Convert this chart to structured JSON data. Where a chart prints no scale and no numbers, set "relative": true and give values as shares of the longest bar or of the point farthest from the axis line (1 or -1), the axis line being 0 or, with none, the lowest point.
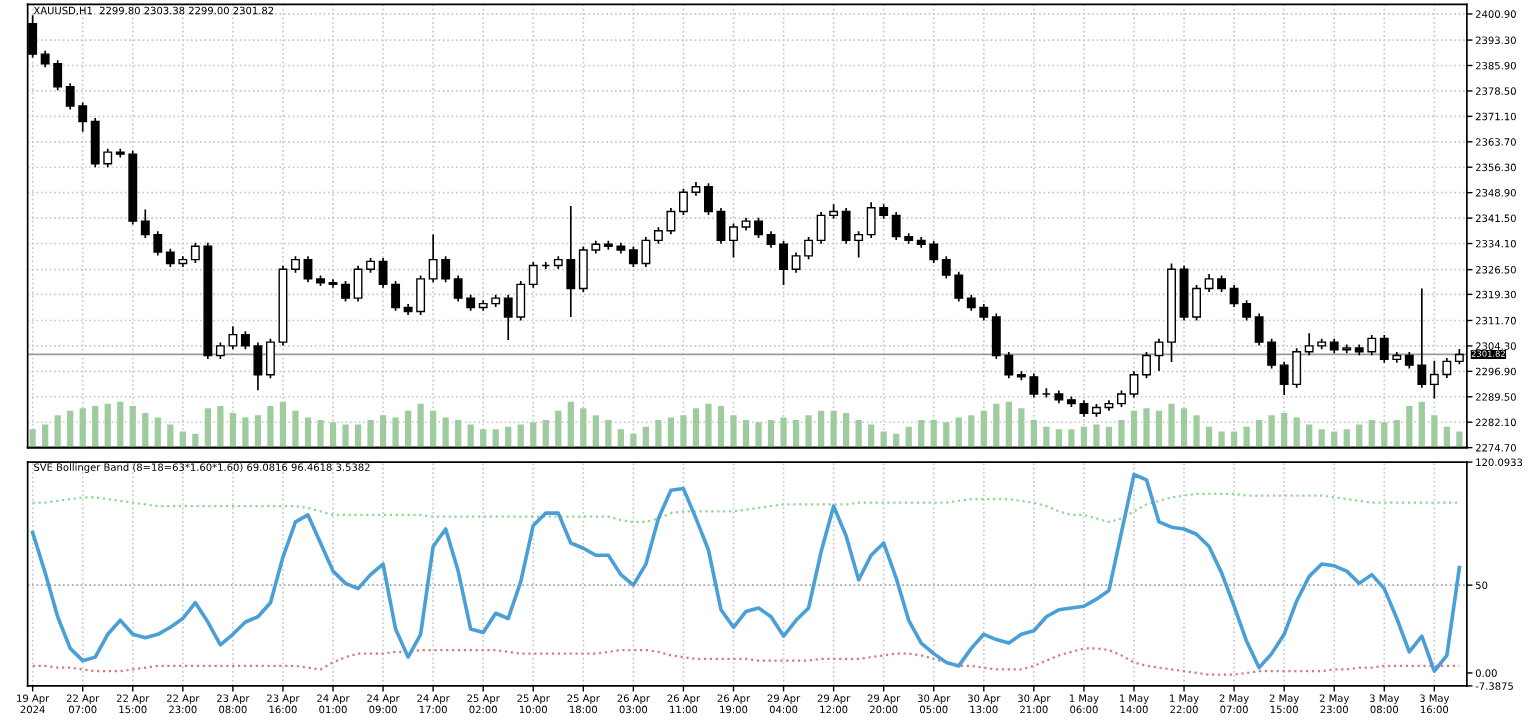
{
  "chart_data": [
    {
      "type": "candlestick",
      "title": "XAUUSD,H1  2299.80 2303.38 2299.00 2301.82",
      "ohlc": [
        [
          2398.1,
          2400.5,
          2388.2,
          2389.2
        ],
        [
          2389.2,
          2390.2,
          2385.4,
          2386.4
        ],
        [
          2386.4,
          2387.4,
          2378.7,
          2379.7
        ],
        [
          2379.7,
          2380.7,
          2373.1,
          2374.1
        ],
        [
          2374.1,
          2375.1,
          2366.6,
          2369.6
        ],
        [
          2369.6,
          2370.6,
          2356.3,
          2357.3
        ],
        [
          2357.3,
          2361.7,
          2356.3,
          2360.7
        ],
        [
          2360.7,
          2361.7,
          2359.1,
          2360.1
        ],
        [
          2360.1,
          2361.1,
          2339.6,
          2340.6
        ],
        [
          2340.6,
          2344.0,
          2335.7,
          2336.7
        ],
        [
          2336.7,
          2337.7,
          2330.6,
          2331.6
        ],
        [
          2331.6,
          2332.6,
          2327.3,
          2328.3
        ],
        [
          2328.3,
          2330.4,
          2327.3,
          2329.4
        ],
        [
          2329.4,
          2334.3,
          2328.4,
          2333.3
        ],
        [
          2333.3,
          2334.3,
          2300.5,
          2301.5
        ],
        [
          2301.5,
          2305.3,
          2300.5,
          2304.3
        ],
        [
          2304.3,
          2310.0,
          2303.3,
          2307.6
        ],
        [
          2307.6,
          2308.6,
          2303.3,
          2304.3
        ],
        [
          2304.3,
          2305.3,
          2291.4,
          2295.9
        ],
        [
          2295.9,
          2306.4,
          2294.9,
          2305.4
        ],
        [
          2305.4,
          2327.6,
          2304.4,
          2326.6
        ],
        [
          2326.6,
          2330.4,
          2325.6,
          2329.4
        ],
        [
          2329.4,
          2330.4,
          2322.8,
          2323.8
        ],
        [
          2323.8,
          2324.8,
          2321.7,
          2322.7
        ],
        [
          2322.7,
          2323.7,
          2321.2,
          2322.2
        ],
        [
          2322.2,
          2323.2,
          2317.2,
          2318.2
        ],
        [
          2318.2,
          2327.6,
          2317.2,
          2326.6
        ],
        [
          2326.6,
          2329.9,
          2325.6,
          2328.9
        ],
        [
          2328.9,
          2329.9,
          2321.2,
          2322.2
        ],
        [
          2322.2,
          2323.2,
          2314.5,
          2315.5
        ],
        [
          2315.5,
          2316.5,
          2313.3,
          2314.3
        ],
        [
          2314.3,
          2324.8,
          2313.3,
          2323.8
        ],
        [
          2323.8,
          2336.7,
          2322.8,
          2329.4
        ],
        [
          2329.4,
          2330.4,
          2322.8,
          2323.8
        ],
        [
          2323.8,
          2324.8,
          2317.2,
          2318.2
        ],
        [
          2318.2,
          2319.2,
          2314.5,
          2315.5
        ],
        [
          2315.5,
          2317.6,
          2314.5,
          2316.6
        ],
        [
          2316.6,
          2319.2,
          2315.6,
          2318.2
        ],
        [
          2318.2,
          2319.2,
          2306.0,
          2312.7
        ],
        [
          2312.7,
          2323.2,
          2311.7,
          2322.2
        ],
        [
          2322.2,
          2328.7,
          2321.2,
          2327.7
        ],
        [
          2327.7,
          2328.7,
          2326.7,
          2327.7
        ],
        [
          2327.7,
          2330.4,
          2326.7,
          2329.4
        ],
        [
          2329.4,
          2345.0,
          2312.7,
          2321.0
        ],
        [
          2321.0,
          2333.2,
          2320.0,
          2332.2
        ],
        [
          2332.2,
          2334.9,
          2331.2,
          2333.9
        ],
        [
          2333.9,
          2334.9,
          2332.3,
          2333.3
        ],
        [
          2333.3,
          2334.3,
          2331.2,
          2332.2
        ],
        [
          2332.2,
          2333.2,
          2327.3,
          2328.3
        ],
        [
          2328.3,
          2336.0,
          2327.3,
          2335.0
        ],
        [
          2335.0,
          2338.8,
          2334.0,
          2337.8
        ],
        [
          2337.8,
          2344.4,
          2336.8,
          2343.4
        ],
        [
          2343.4,
          2350.0,
          2342.4,
          2349.0
        ],
        [
          2349.0,
          2352.0,
          2348.0,
          2350.6
        ],
        [
          2350.6,
          2351.6,
          2342.4,
          2343.4
        ],
        [
          2343.4,
          2344.4,
          2334.0,
          2335.0
        ],
        [
          2335.0,
          2339.9,
          2330.0,
          2338.9
        ],
        [
          2338.9,
          2341.6,
          2337.9,
          2340.6
        ],
        [
          2340.6,
          2341.6,
          2335.7,
          2336.7
        ],
        [
          2336.7,
          2337.7,
          2332.9,
          2333.9
        ],
        [
          2333.9,
          2334.9,
          2322.0,
          2326.6
        ],
        [
          2326.6,
          2331.5,
          2325.6,
          2330.5
        ],
        [
          2330.5,
          2336.0,
          2329.5,
          2335.0
        ],
        [
          2335.0,
          2343.3,
          2334.0,
          2342.3
        ],
        [
          2342.3,
          2345.5,
          2341.3,
          2343.4
        ],
        [
          2343.4,
          2344.4,
          2334.0,
          2335.0
        ],
        [
          2335.0,
          2337.7,
          2330.0,
          2336.7
        ],
        [
          2336.7,
          2346.1,
          2335.7,
          2344.5
        ],
        [
          2344.5,
          2345.5,
          2341.3,
          2342.3
        ],
        [
          2342.3,
          2343.3,
          2335.1,
          2336.1
        ],
        [
          2336.1,
          2337.1,
          2334.0,
          2335.0
        ],
        [
          2335.0,
          2336.0,
          2332.9,
          2333.9
        ],
        [
          2333.9,
          2334.9,
          2328.4,
          2329.4
        ],
        [
          2329.4,
          2330.4,
          2323.9,
          2324.9
        ],
        [
          2324.9,
          2325.9,
          2317.2,
          2318.2
        ],
        [
          2318.2,
          2319.2,
          2314.5,
          2315.5
        ],
        [
          2315.5,
          2316.5,
          2311.7,
          2312.7
        ],
        [
          2312.7,
          2313.7,
          2300.5,
          2301.5
        ],
        [
          2301.5,
          2302.5,
          2294.9,
          2295.9
        ],
        [
          2295.9,
          2296.9,
          2294.3,
          2295.3
        ],
        [
          2295.3,
          2296.3,
          2289.3,
          2290.3
        ],
        [
          2290.3,
          2292.0,
          2289.3,
          2290.3
        ],
        [
          2290.3,
          2291.3,
          2287.6,
          2288.6
        ],
        [
          2288.6,
          2289.6,
          2286.5,
          2287.5
        ],
        [
          2287.5,
          2288.5,
          2283.7,
          2284.7
        ],
        [
          2284.7,
          2287.4,
          2283.7,
          2286.4
        ],
        [
          2286.4,
          2288.5,
          2285.4,
          2287.5
        ],
        [
          2287.5,
          2291.3,
          2286.5,
          2290.3
        ],
        [
          2290.3,
          2296.9,
          2289.3,
          2295.9
        ],
        [
          2295.9,
          2302.5,
          2294.9,
          2301.5
        ],
        [
          2301.5,
          2306.4,
          2297.0,
          2305.4
        ],
        [
          2305.4,
          2328.3,
          2299.6,
          2326.6
        ],
        [
          2326.6,
          2327.6,
          2311.7,
          2312.7
        ],
        [
          2312.7,
          2322.0,
          2311.7,
          2321.0
        ],
        [
          2321.0,
          2325.2,
          2320.0,
          2323.8
        ],
        [
          2323.8,
          2324.8,
          2320.0,
          2321.0
        ],
        [
          2321.0,
          2322.0,
          2315.6,
          2316.6
        ],
        [
          2316.6,
          2317.6,
          2311.7,
          2312.7
        ],
        [
          2312.7,
          2313.7,
          2304.4,
          2305.4
        ],
        [
          2305.4,
          2306.4,
          2297.7,
          2298.7
        ],
        [
          2298.7,
          2299.7,
          2290.0,
          2293.1
        ],
        [
          2293.1,
          2303.6,
          2292.1,
          2302.6
        ],
        [
          2302.6,
          2308.0,
          2301.6,
          2304.3
        ],
        [
          2304.3,
          2306.4,
          2303.3,
          2305.4
        ],
        [
          2305.4,
          2306.4,
          2302.2,
          2303.2
        ],
        [
          2303.2,
          2304.7,
          2302.2,
          2303.7
        ],
        [
          2303.7,
          2304.7,
          2301.6,
          2302.6
        ],
        [
          2302.6,
          2307.5,
          2301.6,
          2306.5
        ],
        [
          2306.5,
          2307.5,
          2299.4,
          2300.4
        ],
        [
          2300.4,
          2302.5,
          2299.4,
          2301.5
        ],
        [
          2301.5,
          2302.5,
          2297.7,
          2298.7
        ],
        [
          2298.7,
          2321.0,
          2292.1,
          2293.1
        ],
        [
          2293.1,
          2300.0,
          2289.0,
          2296.0
        ],
        [
          2296.0,
          2300.8,
          2295.0,
          2299.8
        ],
        [
          2299.8,
          2303.38,
          2299.0,
          2301.82
        ]
      ],
      "ylim": [
        2274.7,
        2403.7
      ],
      "yticks": [
        {
          "value": 2400.9,
          "label": "2400.90"
        },
        {
          "value": 2393.3,
          "label": "2393.30"
        },
        {
          "value": 2385.9,
          "label": "2385.90"
        },
        {
          "value": 2378.5,
          "label": "2378.50"
        },
        {
          "value": 2371.1,
          "label": "2371.10"
        },
        {
          "value": 2363.7,
          "label": "2363.70"
        },
        {
          "value": 2356.3,
          "label": "2356.30"
        },
        {
          "value": 2348.9,
          "label": "2348.90"
        },
        {
          "value": 2341.5,
          "label": "2341.50"
        },
        {
          "value": 2334.1,
          "label": "2334.10"
        },
        {
          "value": 2326.5,
          "label": "2326.50"
        },
        {
          "value": 2319.3,
          "label": "2319.30"
        },
        {
          "value": 2311.7,
          "label": "2311.70"
        },
        {
          "value": 2304.3,
          "label": "2304.30"
        },
        {
          "value": 2296.9,
          "label": "2296.90"
        },
        {
          "value": 2289.5,
          "label": "2289.50"
        },
        {
          "value": 2282.1,
          "label": "2282.10"
        },
        {
          "value": 2274.7,
          "label": "2274.70"
        }
      ],
      "ref_lines": [
        {
          "axis": "y",
          "value": 2301.82,
          "label": "2301.82",
          "color": "#9a9a9a",
          "line_style": "solid"
        }
      ],
      "grid": true,
      "tick_labels": "y"
    },
    {
      "type": "bar",
      "relative": true,
      "color": "#9fcc9f",
      "tick_labels": false,
      "values": [
        0.4,
        0.5,
        0.7,
        0.8,
        0.85,
        0.9,
        0.95,
        1.0,
        0.9,
        0.75,
        0.65,
        0.5,
        0.35,
        0.3,
        0.85,
        0.9,
        0.75,
        0.65,
        0.7,
        0.9,
        1.0,
        0.8,
        0.65,
        0.6,
        0.55,
        0.5,
        0.5,
        0.6,
        0.7,
        0.65,
        0.8,
        0.95,
        0.8,
        0.65,
        0.6,
        0.5,
        0.4,
        0.4,
        0.45,
        0.5,
        0.55,
        0.6,
        0.8,
        1.0,
        0.85,
        0.7,
        0.6,
        0.4,
        0.3,
        0.45,
        0.6,
        0.65,
        0.7,
        0.85,
        0.95,
        0.9,
        0.7,
        0.6,
        0.55,
        0.6,
        0.65,
        0.6,
        0.7,
        0.8,
        0.8,
        0.75,
        0.6,
        0.5,
        0.35,
        0.3,
        0.45,
        0.6,
        0.6,
        0.55,
        0.65,
        0.7,
        0.8,
        0.95,
        1.0,
        0.85,
        0.6,
        0.45,
        0.4,
        0.4,
        0.45,
        0.5,
        0.45,
        0.6,
        0.8,
        0.85,
        0.8,
        0.95,
        0.85,
        0.7,
        0.45,
        0.35,
        0.35,
        0.45,
        0.6,
        0.7,
        0.75,
        0.65,
        0.5,
        0.4,
        0.35,
        0.4,
        0.5,
        0.6,
        0.55,
        0.6,
        0.9,
        1.0,
        0.7,
        0.45,
        0.35
      ]
    },
    {
      "type": "line",
      "title": "SVE Bollinger Band (8=18=63*1.60*1.60) 69.0816 96.4618 3.5382",
      "categories": [
        "19 Apr 2024",
        null,
        null,
        null,
        "22 Apr 07:00",
        null,
        null,
        null,
        "22 Apr 15:00",
        null,
        null,
        null,
        "22 Apr 23:00",
        null,
        null,
        null,
        "23 Apr 08:00",
        null,
        null,
        null,
        "23 Apr 16:00",
        null,
        null,
        null,
        "24 Apr 01:00",
        null,
        null,
        null,
        "24 Apr 09:00",
        null,
        null,
        null,
        "24 Apr 17:00",
        null,
        null,
        null,
        "25 Apr 02:00",
        null,
        null,
        null,
        "25 Apr 10:00",
        null,
        null,
        null,
        "25 Apr 18:00",
        null,
        null,
        null,
        "26 Apr 03:00",
        null,
        null,
        null,
        "26 Apr 11:00",
        null,
        null,
        null,
        "26 Apr 19:00",
        null,
        null,
        null,
        "29 Apr 04:00",
        null,
        null,
        null,
        "29 Apr 12:00",
        null,
        null,
        null,
        "29 Apr 20:00",
        null,
        null,
        null,
        "30 Apr 05:00",
        null,
        null,
        null,
        "30 Apr 13:00",
        null,
        null,
        null,
        "30 Apr 21:00",
        null,
        null,
        null,
        "1 May 06:00",
        null,
        null,
        null,
        "1 May 14:00",
        null,
        null,
        null,
        "1 May 22:00",
        null,
        null,
        null,
        "2 May 07:00",
        null,
        null,
        null,
        "2 May 15:00",
        null,
        null,
        null,
        "2 May 23:00",
        null,
        null,
        null,
        "3 May 08:00",
        null,
        null,
        null,
        "3 May 16:00",
        null,
        null
      ],
      "series": [
        {
          "color": "#8fd68f",
          "line_style": "dotted",
          "values": [
            97,
            97,
            98,
            99,
            100,
            100,
            99,
            98,
            97,
            96,
            95,
            95,
            95,
            95,
            95,
            95,
            95,
            95,
            95,
            95,
            95,
            95,
            94,
            92,
            90,
            90,
            90,
            90,
            90,
            90,
            90,
            90,
            89,
            89,
            89,
            89,
            89,
            89,
            89,
            89,
            89,
            89,
            89,
            89,
            89,
            89,
            89,
            87,
            86,
            86,
            88,
            91,
            92,
            92,
            92,
            92,
            92,
            93,
            94,
            95,
            96,
            96,
            96,
            96,
            96,
            96,
            97,
            97,
            97,
            97,
            97,
            97,
            97,
            97,
            98,
            99,
            99,
            99,
            99,
            98,
            97,
            95,
            92,
            90,
            90,
            88,
            86,
            88,
            92,
            96,
            98,
            100,
            101,
            102,
            102,
            102,
            102,
            101,
            101,
            101,
            101,
            101,
            101,
            101,
            100,
            99,
            98,
            97,
            97,
            97,
            97,
            97,
            97,
            97,
            97
          ]
        },
        {
          "color": "#d97a7a",
          "line_style": "dotted",
          "values": [
            4,
            4,
            3,
            3,
            2,
            1,
            1,
            1,
            2,
            3,
            4,
            4,
            4,
            4,
            4,
            4,
            4,
            4,
            4,
            4,
            4,
            4,
            3,
            2,
            6,
            9,
            11,
            11,
            11,
            12,
            12,
            13,
            13,
            13,
            13,
            13,
            13,
            13,
            12,
            11,
            11,
            11,
            11,
            11,
            11,
            11,
            12,
            13,
            13,
            13,
            12,
            10,
            9,
            8,
            8,
            8,
            8,
            8,
            7,
            7,
            7,
            7,
            7,
            8,
            8,
            8,
            8,
            9,
            10,
            11,
            11,
            10,
            8,
            6,
            4,
            4,
            3,
            2,
            2,
            2,
            4,
            7,
            10,
            12,
            14,
            14,
            13,
            10,
            6,
            4,
            3,
            2,
            1,
            0,
            -1,
            -1,
            -1,
            0,
            1,
            1,
            1,
            1,
            1,
            1,
            2,
            2,
            3,
            3,
            4,
            4,
            4,
            4,
            4,
            4,
            4
          ]
        },
        {
          "color": "#4a9fd6",
          "line_style": "solid",
          "values": [
            80,
            57,
            32,
            14,
            7,
            9,
            22,
            30,
            22,
            20,
            22,
            26,
            31,
            40,
            29,
            16,
            22,
            29,
            32,
            40,
            66,
            86,
            90,
            74,
            58,
            51,
            48,
            56,
            62,
            25,
            9,
            22,
            72,
            82,
            58,
            25,
            23,
            34,
            31,
            52,
            84,
            91,
            91,
            74,
            71,
            67,
            67,
            56,
            50,
            62,
            88,
            104,
            105,
            88,
            70,
            36,
            26,
            35,
            37,
            32,
            21,
            30,
            37,
            69,
            95,
            78,
            53,
            67,
            74,
            54,
            30,
            17,
            11,
            6,
            4,
            14,
            22,
            19,
            17,
            22,
            24,
            32,
            36,
            37,
            38,
            42,
            47,
            80,
            113,
            110,
            86,
            83,
            82,
            79,
            72,
            57,
            38,
            18,
            3,
            11,
            22,
            41,
            55,
            62,
            61,
            58,
            51,
            56,
            48,
            31,
            12,
            21,
            1,
            10,
            60
          ]
        }
      ],
      "ylim": [
        -7.3875,
        120.0933
      ],
      "yticks": [
        {
          "value": 120.0933,
          "label": "120.0933"
        },
        50,
        {
          "value": 0,
          "label": "0.00"
        },
        {
          "value": -7.3875,
          "label": "-7.3875"
        }
      ],
      "ref_lines": [
        {
          "axis": "y",
          "value": 50,
          "color": "#a0a0a0",
          "line_style": "dotted"
        }
      ],
      "grid": "x"
    }
  ]
}
